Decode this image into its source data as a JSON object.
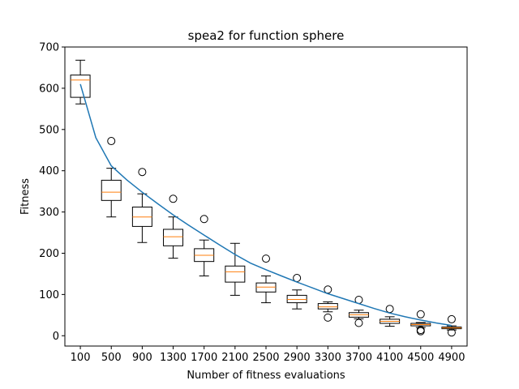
{
  "chart_data": {
    "type": "box",
    "title": "spea2 for function sphere",
    "xlabel": "Number of fitness evaluations",
    "ylabel": "Fitness",
    "ylim": [
      -25,
      700
    ],
    "yticks": [
      0,
      100,
      200,
      300,
      400,
      500,
      600,
      700
    ],
    "categories": [
      "100",
      "500",
      "900",
      "1300",
      "1700",
      "2100",
      "2500",
      "2900",
      "3300",
      "3700",
      "4100",
      "4500",
      "4900"
    ],
    "boxes": [
      {
        "x": 100,
        "whisker_low": 562,
        "q1": 578,
        "median": 620,
        "q3": 632,
        "whisker_high": 668,
        "outliers": []
      },
      {
        "x": 500,
        "whisker_low": 288,
        "q1": 328,
        "median": 348,
        "q3": 377,
        "whisker_high": 406,
        "outliers": [
          472
        ]
      },
      {
        "x": 900,
        "whisker_low": 226,
        "q1": 265,
        "median": 288,
        "q3": 312,
        "whisker_high": 344,
        "outliers": [
          397
        ]
      },
      {
        "x": 1300,
        "whisker_low": 188,
        "q1": 218,
        "median": 240,
        "q3": 258,
        "whisker_high": 288,
        "outliers": [
          332
        ]
      },
      {
        "x": 1700,
        "whisker_low": 145,
        "q1": 180,
        "median": 195,
        "q3": 211,
        "whisker_high": 232,
        "outliers": [
          283
        ]
      },
      {
        "x": 2100,
        "whisker_low": 98,
        "q1": 130,
        "median": 155,
        "q3": 169,
        "whisker_high": 224,
        "outliers": []
      },
      {
        "x": 2500,
        "whisker_low": 80,
        "q1": 106,
        "median": 118,
        "q3": 128,
        "whisker_high": 145,
        "outliers": [
          187
        ]
      },
      {
        "x": 2900,
        "whisker_low": 65,
        "q1": 80,
        "median": 88,
        "q3": 98,
        "whisker_high": 111,
        "outliers": [
          140
        ]
      },
      {
        "x": 3300,
        "whisker_low": 58,
        "q1": 65,
        "median": 70,
        "q3": 78,
        "whisker_high": 82,
        "outliers": [
          112,
          44
        ]
      },
      {
        "x": 3700,
        "whisker_low": 41,
        "q1": 45,
        "median": 51,
        "q3": 56,
        "whisker_high": 62,
        "outliers": [
          87,
          31
        ]
      },
      {
        "x": 4100,
        "whisker_low": 23,
        "q1": 30,
        "median": 35,
        "q3": 40,
        "whisker_high": 46,
        "outliers": [
          65
        ]
      },
      {
        "x": 4500,
        "whisker_low": 20,
        "q1": 24,
        "median": 27,
        "q3": 30,
        "whisker_high": 32,
        "outliers": [
          52,
          14,
          11
        ]
      },
      {
        "x": 4900,
        "whisker_low": 14,
        "q1": 17,
        "median": 19,
        "q3": 21,
        "whisker_high": 24,
        "outliers": [
          40,
          8
        ]
      }
    ],
    "mean_line": {
      "x": [
        100,
        300,
        500,
        700,
        900,
        1100,
        1300,
        1500,
        1700,
        1900,
        2100,
        2300,
        2500,
        2700,
        2900,
        3100,
        3300,
        3500,
        3700,
        3900,
        4100,
        4300,
        4500,
        4700,
        4900
      ],
      "y": [
        610,
        480,
        412,
        378,
        348,
        320,
        293,
        268,
        244,
        220,
        197,
        176,
        160,
        145,
        130,
        116,
        102,
        90,
        78,
        66,
        55,
        46,
        38,
        31,
        25
      ]
    },
    "colors": {
      "box": "#000000",
      "median": "#ff7f0e",
      "line": "#1f77b4",
      "outlier": "#000000"
    },
    "grid": false,
    "legend": "none"
  }
}
